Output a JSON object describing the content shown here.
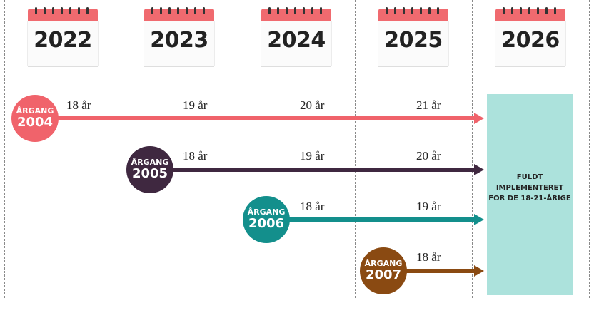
{
  "years": [
    "2022",
    "2023",
    "2024",
    "2025",
    "2026"
  ],
  "cohorts": [
    {
      "label": "ÅRGANG",
      "year": "2004",
      "color": "#f0636b",
      "line_color": "#f0636b",
      "ages": [
        "18 år",
        "19 år",
        "20 år",
        "21 år"
      ]
    },
    {
      "label": "ÅRGANG",
      "year": "2005",
      "color": "#3f2840",
      "line_color": "#3f2840",
      "ages": [
        "18 år",
        "19 år",
        "20 år"
      ]
    },
    {
      "label": "ÅRGANG",
      "year": "2006",
      "color": "#138f8c",
      "line_color": "#138f8c",
      "ages": [
        "18 år",
        "19 år"
      ]
    },
    {
      "label": "ÅRGANG",
      "year": "2007",
      "color": "#8a4a12",
      "line_color": "#8a4a12",
      "ages": [
        "18 år"
      ]
    }
  ],
  "final_box": {
    "color": "#ace2dc",
    "text": "FULDT IMPLEMENTERET FOR DE 18-21-ÅRIGE"
  }
}
